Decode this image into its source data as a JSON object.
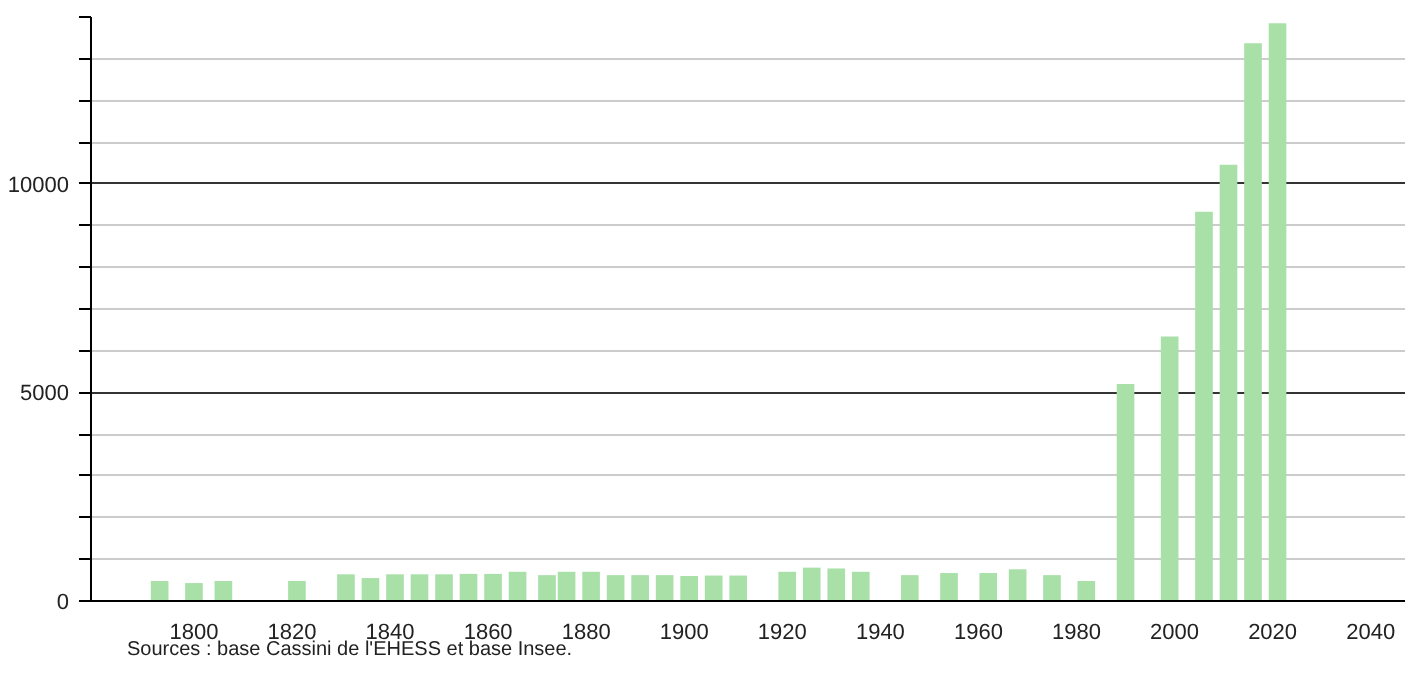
{
  "chart_data": {
    "type": "bar",
    "x": [
      1793,
      1800,
      1806,
      1821,
      1831,
      1836,
      1841,
      1846,
      1851,
      1856,
      1861,
      1866,
      1872,
      1876,
      1881,
      1886,
      1891,
      1896,
      1901,
      1906,
      1911,
      1921,
      1926,
      1931,
      1936,
      1946,
      1954,
      1962,
      1968,
      1975,
      1982,
      1990,
      1999,
      2006,
      2011,
      2016,
      2021
    ],
    "values": [
      480,
      430,
      480,
      480,
      640,
      550,
      640,
      640,
      640,
      650,
      650,
      700,
      620,
      700,
      700,
      620,
      620,
      620,
      600,
      610,
      610,
      700,
      800,
      780,
      700,
      620,
      670,
      670,
      760,
      620,
      480,
      5200,
      6340,
      9330,
      10460,
      13370,
      13850
    ],
    "color": "#a8e0a8",
    "xlim": [
      1779,
      2047
    ],
    "xticks": [
      1800,
      1820,
      1840,
      1860,
      1880,
      1900,
      1920,
      1940,
      1960,
      1980,
      2000,
      2020,
      2040
    ],
    "ylim": [
      0,
      14000
    ],
    "yticks": [
      0,
      {
        "value": 1000,
        "label": null
      },
      {
        "value": 2000,
        "label": null
      },
      {
        "value": 3000,
        "label": null
      },
      {
        "value": 4000,
        "label": null
      },
      5000,
      {
        "value": 6000,
        "label": null
      },
      {
        "value": 7000,
        "label": null
      },
      {
        "value": 8000,
        "label": null
      },
      {
        "value": 9000,
        "label": null
      },
      10000,
      {
        "value": 11000,
        "label": null
      },
      {
        "value": 12000,
        "label": null
      },
      {
        "value": 13000,
        "label": null
      },
      {
        "value": 14000,
        "label": null
      }
    ],
    "grid": "y",
    "annotations": [
      "Sources : base Cassini de l'EHESS et base Insee."
    ]
  }
}
